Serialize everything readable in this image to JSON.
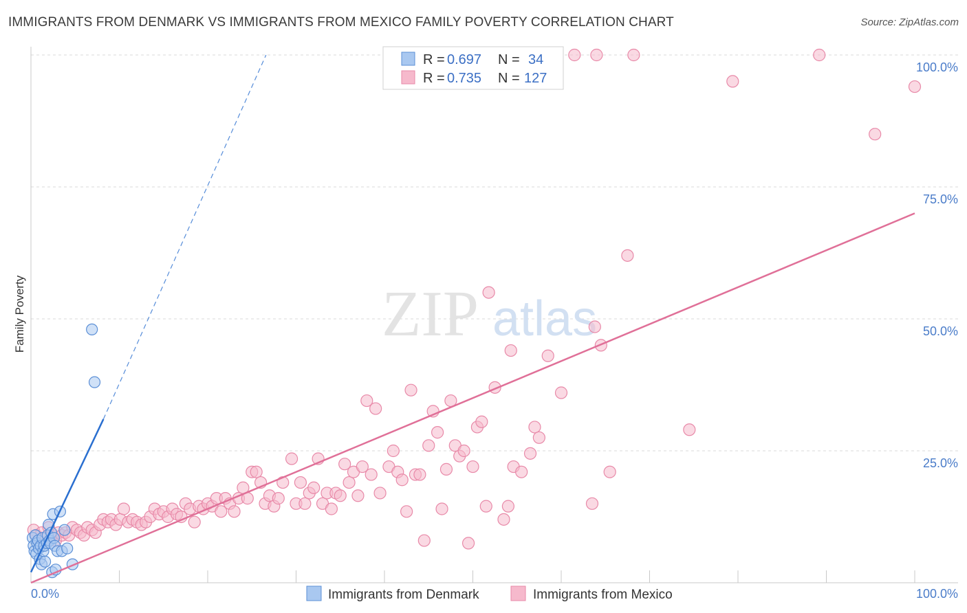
{
  "title": "IMMIGRANTS FROM DENMARK VS IMMIGRANTS FROM MEXICO FAMILY POVERTY CORRELATION CHART",
  "source": "Source: ZipAtlas.com",
  "colors": {
    "denmark_fill": "#a9c8f0",
    "denmark_stroke": "#5b8fd6",
    "denmark_line": "#2a6fd0",
    "mexico_fill": "#f6b9cc",
    "mexico_stroke": "#e889a8",
    "mexico_line": "#e07098",
    "grid": "#d9d9d9",
    "tick_text": "#4a7cc9"
  },
  "legend": {
    "rows": [
      {
        "r_label": "R =",
        "r_value": "0.697",
        "n_label": "N =",
        "n_value": "34"
      },
      {
        "r_label": "R =",
        "r_value": "0.735",
        "n_label": "N =",
        "n_value": "127"
      }
    ]
  },
  "chart_data": {
    "type": "scatter",
    "title": "IMMIGRANTS FROM DENMARK VS IMMIGRANTS FROM MEXICO FAMILY POVERTY CORRELATION CHART",
    "xlabel": "",
    "ylabel": "Family Poverty",
    "xlim": [
      0,
      100
    ],
    "ylim": [
      0,
      100
    ],
    "x_tick_labels": [
      "0.0%",
      "100.0%"
    ],
    "y_tick_labels": [
      "25.0%",
      "50.0%",
      "75.0%",
      "100.0%"
    ],
    "y_tick_values": [
      25,
      50,
      75,
      100
    ],
    "watermark": {
      "zip": "ZIP",
      "atlas": "atlas"
    },
    "series": [
      {
        "name": "Immigrants from Denmark",
        "R": 0.697,
        "N": 34,
        "trend": {
          "x0": 0,
          "y0": 2,
          "x1": 8.2,
          "y1": 31,
          "dash_x1": 26.6,
          "dash_y1": 100
        },
        "points": [
          [
            0.2,
            8.5
          ],
          [
            0.3,
            7.0
          ],
          [
            0.4,
            6.0
          ],
          [
            0.5,
            9.0
          ],
          [
            0.6,
            5.5
          ],
          [
            0.7,
            7.5
          ],
          [
            0.8,
            8.0
          ],
          [
            0.9,
            6.5
          ],
          [
            1.0,
            4.5
          ],
          [
            1.1,
            7.0
          ],
          [
            1.2,
            3.5
          ],
          [
            1.3,
            8.5
          ],
          [
            1.4,
            6.0
          ],
          [
            1.5,
            7.0
          ],
          [
            1.6,
            4.0
          ],
          [
            1.8,
            7.5
          ],
          [
            1.9,
            9.0
          ],
          [
            2.0,
            11.0
          ],
          [
            2.1,
            8.0
          ],
          [
            2.2,
            7.5
          ],
          [
            2.3,
            9.5
          ],
          [
            2.4,
            2.0
          ],
          [
            2.5,
            13.0
          ],
          [
            2.6,
            8.5
          ],
          [
            2.7,
            7.0
          ],
          [
            2.8,
            2.5
          ],
          [
            3.0,
            6.0
          ],
          [
            3.3,
            13.5
          ],
          [
            3.5,
            6.0
          ],
          [
            3.8,
            10.0
          ],
          [
            4.1,
            6.5
          ],
          [
            4.7,
            3.5
          ],
          [
            7.2,
            38.0
          ],
          [
            6.9,
            48.0
          ]
        ]
      },
      {
        "name": "Immigrants from Mexico",
        "R": 0.735,
        "N": 127,
        "trend": {
          "x0": 0,
          "y0": 0,
          "x1": 100,
          "y1": 70
        },
        "points": [
          [
            0.3,
            10.0
          ],
          [
            0.6,
            9.0
          ],
          [
            0.9,
            8.0
          ],
          [
            1.2,
            9.5
          ],
          [
            1.6,
            8.5
          ],
          [
            2.0,
            10.5
          ],
          [
            2.4,
            9.0
          ],
          [
            2.8,
            8.0
          ],
          [
            3.1,
            9.5
          ],
          [
            3.5,
            9.0
          ],
          [
            3.9,
            9.5
          ],
          [
            4.3,
            9.0
          ],
          [
            4.7,
            10.5
          ],
          [
            5.2,
            10.0
          ],
          [
            5.6,
            9.5
          ],
          [
            6.0,
            9.0
          ],
          [
            6.4,
            10.5
          ],
          [
            6.9,
            10.0
          ],
          [
            7.3,
            9.5
          ],
          [
            7.8,
            11.0
          ],
          [
            8.2,
            12.0
          ],
          [
            8.7,
            11.5
          ],
          [
            9.1,
            12.0
          ],
          [
            9.6,
            11.0
          ],
          [
            10.1,
            12.0
          ],
          [
            10.5,
            14.0
          ],
          [
            11.0,
            11.5
          ],
          [
            11.5,
            12.0
          ],
          [
            12.0,
            11.5
          ],
          [
            12.5,
            11.0
          ],
          [
            13.0,
            11.5
          ],
          [
            13.5,
            12.5
          ],
          [
            14.0,
            14.0
          ],
          [
            14.5,
            13.0
          ],
          [
            15.0,
            13.5
          ],
          [
            15.5,
            12.5
          ],
          [
            16.0,
            14.0
          ],
          [
            16.5,
            13.0
          ],
          [
            17.0,
            12.5
          ],
          [
            17.5,
            15.0
          ],
          [
            18.0,
            14.0
          ],
          [
            18.5,
            11.5
          ],
          [
            19.0,
            14.5
          ],
          [
            19.5,
            14.0
          ],
          [
            20.0,
            15.0
          ],
          [
            20.5,
            14.5
          ],
          [
            21.0,
            16.0
          ],
          [
            21.5,
            13.5
          ],
          [
            22.0,
            16.0
          ],
          [
            22.5,
            15.0
          ],
          [
            23.0,
            13.5
          ],
          [
            23.5,
            16.0
          ],
          [
            24.0,
            18.0
          ],
          [
            24.5,
            16.0
          ],
          [
            25.0,
            21.0
          ],
          [
            25.5,
            21.0
          ],
          [
            26.0,
            19.0
          ],
          [
            26.5,
            15.0
          ],
          [
            27.0,
            16.5
          ],
          [
            27.5,
            14.5
          ],
          [
            28.0,
            16.0
          ],
          [
            28.5,
            19.0
          ],
          [
            29.5,
            23.5
          ],
          [
            30.0,
            15.0
          ],
          [
            30.5,
            19.0
          ],
          [
            31.0,
            15.0
          ],
          [
            31.5,
            17.0
          ],
          [
            32.0,
            18.0
          ],
          [
            32.5,
            23.5
          ],
          [
            33.0,
            15.0
          ],
          [
            33.5,
            17.0
          ],
          [
            34.0,
            14.0
          ],
          [
            34.5,
            17.0
          ],
          [
            35.0,
            16.5
          ],
          [
            35.5,
            22.5
          ],
          [
            36.0,
            19.0
          ],
          [
            36.5,
            21.0
          ],
          [
            37.0,
            16.5
          ],
          [
            37.5,
            22.0
          ],
          [
            38.0,
            34.5
          ],
          [
            38.5,
            20.5
          ],
          [
            39.0,
            33.0
          ],
          [
            39.5,
            17.0
          ],
          [
            40.5,
            22.0
          ],
          [
            41.0,
            25.0
          ],
          [
            41.5,
            21.0
          ],
          [
            42.0,
            19.5
          ],
          [
            42.5,
            13.5
          ],
          [
            43.0,
            36.5
          ],
          [
            43.5,
            20.5
          ],
          [
            44.0,
            20.5
          ],
          [
            44.5,
            8.0
          ],
          [
            45.0,
            26.0
          ],
          [
            45.5,
            32.5
          ],
          [
            46.0,
            28.5
          ],
          [
            46.5,
            14.0
          ],
          [
            47.0,
            21.5
          ],
          [
            47.5,
            34.5
          ],
          [
            48.0,
            26.0
          ],
          [
            48.5,
            24.0
          ],
          [
            49.0,
            25.0
          ],
          [
            49.5,
            7.5
          ],
          [
            50.0,
            22.0
          ],
          [
            50.5,
            29.5
          ],
          [
            51.0,
            30.5
          ],
          [
            51.5,
            14.5
          ],
          [
            51.8,
            55.0
          ],
          [
            52.5,
            37.0
          ],
          [
            53.5,
            12.0
          ],
          [
            54.0,
            14.5
          ],
          [
            54.3,
            44.0
          ],
          [
            54.6,
            22.0
          ],
          [
            55.5,
            21.0
          ],
          [
            56.5,
            24.5
          ],
          [
            57.0,
            29.5
          ],
          [
            57.5,
            27.5
          ],
          [
            58.5,
            43.0
          ],
          [
            60.0,
            36.0
          ],
          [
            63.5,
            15.0
          ],
          [
            63.8,
            48.5
          ],
          [
            64.5,
            45.0
          ],
          [
            65.5,
            21.0
          ],
          [
            67.5,
            62.0
          ],
          [
            74.5,
            29.0
          ],
          [
            61.5,
            100.0
          ],
          [
            64.0,
            100.0
          ],
          [
            68.2,
            100.0
          ],
          [
            79.4,
            95.0
          ],
          [
            89.2,
            100.0
          ],
          [
            95.5,
            85.0
          ],
          [
            100.0,
            94.0
          ]
        ]
      }
    ]
  },
  "bottom_legend": {
    "items": [
      {
        "label": "Immigrants from Denmark"
      },
      {
        "label": "Immigrants from Mexico"
      }
    ]
  }
}
